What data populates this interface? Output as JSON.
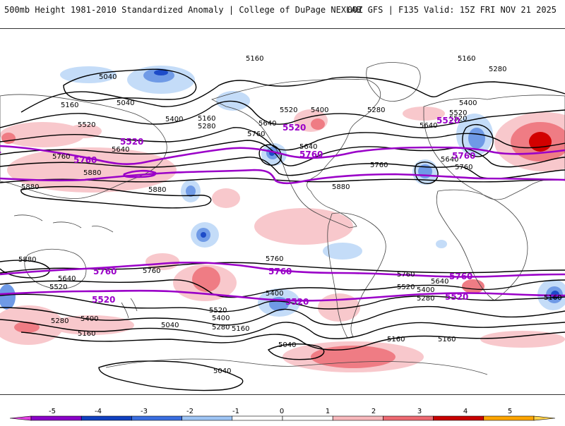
{
  "header": {
    "left": "500mb Height 1981-2010 Standardized Anomaly | College of DuPage NEXLAB",
    "right": "00Z GFS | F135 Valid: 15Z FRI NOV 21 2025"
  },
  "map": {
    "contour_labels": [
      "5160",
      "5160",
      "5280",
      "5040",
      "5040",
      "5160",
      "5400",
      "5160",
      "5280",
      "5520",
      "5400",
      "5280",
      "5640",
      "5520",
      "5520",
      "5400",
      "5520",
      "5640",
      "5760",
      "5640",
      "5640",
      "5760",
      "5760",
      "5880",
      "5880",
      "5880",
      "5880",
      "5760",
      "5640",
      "5880",
      "5760",
      "5760",
      "5640",
      "5520",
      "5400",
      "5520",
      "5640",
      "5760",
      "5520",
      "5400",
      "5280",
      "5160",
      "5400",
      "5280",
      "5160",
      "5040",
      "5040",
      "5040",
      "5160",
      "5160",
      "5520",
      "5640",
      "5400",
      "5280",
      "5160"
    ],
    "purple_labels": [
      "5520",
      "5760",
      "5520",
      "5760",
      "5520",
      "5760",
      "5760",
      "5520",
      "5760",
      "5760",
      "5520",
      "5520"
    ],
    "anomaly_colors": {
      "neg1": "#c4dcf8",
      "neg2": "#6f9ae6",
      "neg3": "#1d4bc8",
      "pos1": "#f8c8cc",
      "pos2": "#ef7c84",
      "pos3": "#d20000",
      "highlight": "#9a00c8"
    }
  },
  "legend": {
    "ticks": [
      "-5",
      "-4",
      "-3",
      "-2",
      "-1",
      "0",
      "1",
      "2",
      "3",
      "4",
      "5"
    ],
    "colors": [
      "#e040e0",
      "#8a00c8",
      "#1040c0",
      "#3a6ee0",
      "#9ec4f4",
      "#ffffff",
      "#ffffff",
      "#f8b8bc",
      "#ee6a72",
      "#c80000",
      "#ffa500",
      "#ffd24a"
    ]
  }
}
